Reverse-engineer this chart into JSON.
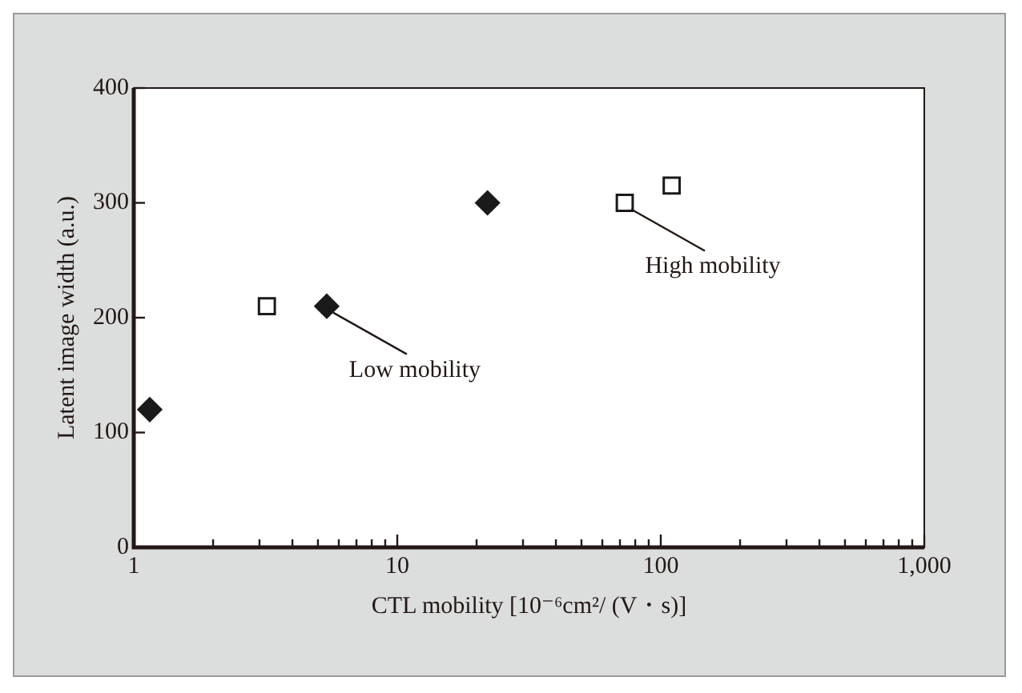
{
  "chart_data": {
    "type": "scatter",
    "xlabel": "CTL mobility [10⁻⁶cm²/ (V・s)]",
    "ylabel": "Latent image width (a.u.)",
    "log": "x",
    "legend": false,
    "xlim": [
      1,
      1000
    ],
    "ylim": [
      0,
      400
    ],
    "xticks": [
      1,
      {
        "value": 2,
        "label": null
      },
      {
        "value": 3,
        "label": null
      },
      {
        "value": 4,
        "label": null
      },
      {
        "value": 5,
        "label": null
      },
      {
        "value": 6,
        "label": null
      },
      {
        "value": 7,
        "label": null
      },
      {
        "value": 8,
        "label": null
      },
      {
        "value": 9,
        "label": null
      },
      10,
      {
        "value": 20,
        "label": null
      },
      {
        "value": 30,
        "label": null
      },
      {
        "value": 40,
        "label": null
      },
      {
        "value": 50,
        "label": null
      },
      {
        "value": 60,
        "label": null
      },
      {
        "value": 70,
        "label": null
      },
      {
        "value": 80,
        "label": null
      },
      {
        "value": 90,
        "label": null
      },
      100,
      {
        "value": 200,
        "label": null
      },
      {
        "value": 300,
        "label": null
      },
      {
        "value": 400,
        "label": null
      },
      {
        "value": 500,
        "label": null
      },
      {
        "value": 600,
        "label": null
      },
      {
        "value": 700,
        "label": null
      },
      {
        "value": 800,
        "label": null
      },
      {
        "value": 900,
        "label": null
      },
      {
        "value": 1000,
        "label": "1,000"
      }
    ],
    "yticks": [
      0,
      100,
      200,
      300,
      400
    ],
    "series": [
      {
        "color": "#1a1a1a",
        "marker": "diamond",
        "x": [
          1.15,
          5.4,
          22
        ],
        "values": [
          120,
          210,
          300
        ]
      },
      {
        "color": "#1a1a1a",
        "marker": "square",
        "x": [
          3.2,
          73,
          110
        ],
        "values": [
          210,
          300,
          315
        ]
      }
    ],
    "annotations": [
      {
        "text": "Low mobility",
        "x": 5.4,
        "y": 210
      },
      {
        "text": "High mobility",
        "x": 73,
        "y": 300
      }
    ]
  }
}
